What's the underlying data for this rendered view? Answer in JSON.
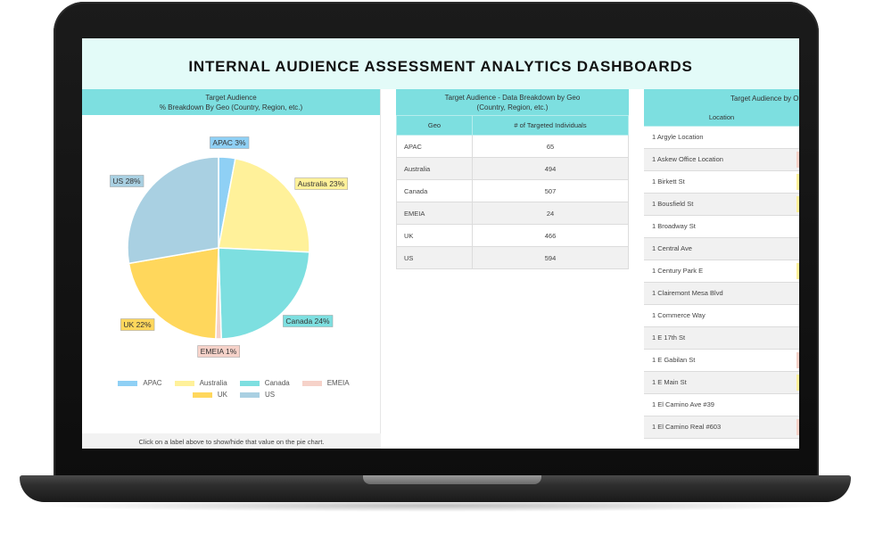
{
  "dashboard": {
    "title": "INTERNAL AUDIENCE ASSESSMENT ANALYTICS DASHBOARDS"
  },
  "pie_panel": {
    "header_line1": "Target Audience",
    "header_line2": "% Breakdown By Geo (Country, Region, etc.)",
    "footer": "Click on a label above to show/hide that value on the pie chart."
  },
  "chart_data": {
    "type": "pie",
    "slices": [
      {
        "name": "APAC",
        "label": "APAC 3%",
        "value": 3,
        "color": "#8fd0f5"
      },
      {
        "name": "Australia",
        "label": "Australia 23%",
        "value": 23,
        "color": "#fff19a"
      },
      {
        "name": "Canada",
        "label": "Canada 24%",
        "value": 24,
        "color": "#7ddfe0"
      },
      {
        "name": "EMEIA",
        "label": "EMEIA 1%",
        "value": 1,
        "color": "#f6d2c9"
      },
      {
        "name": "UK",
        "label": "UK 22%",
        "value": 22,
        "color": "#ffd75c"
      },
      {
        "name": "US",
        "label": "US 28%",
        "value": 28,
        "color": "#a9d0e2"
      }
    ],
    "legend": [
      "APAC",
      "Australia",
      "Canada",
      "EMEIA",
      "UK",
      "US"
    ],
    "legend_position": "bottom"
  },
  "geo_table": {
    "header_line1": "Target Audience - Data Breakdown by Geo",
    "header_line2": "(Country, Region, etc.)",
    "columns": [
      "Geo",
      "# of Targeted Individuals"
    ],
    "rows": [
      [
        "APAC",
        "65"
      ],
      [
        "Australia",
        "494"
      ],
      [
        "Canada",
        "507"
      ],
      [
        "EMEIA",
        "24"
      ],
      [
        "UK",
        "466"
      ],
      [
        "US",
        "594"
      ]
    ]
  },
  "location_panel": {
    "header": "Target Audience by O",
    "column": "Location",
    "rows": [
      "1 Argyle Location",
      "1 Askew Office Location",
      "1 Birkett St",
      "1 Bousfield St",
      "1 Broadway St",
      "1 Central Ave",
      "1 Century Park E",
      "1 Clairemont Mesa Blvd",
      "1 Commerce Way",
      "1 E 17th St",
      "1 E Gabilan St",
      "1 E Main St",
      "1 El Camino Ave #39",
      "1 El Camino Real #603"
    ],
    "edge_colors": [
      "",
      "#f6d2c9",
      "#fff19a",
      "#fff19a",
      "",
      "",
      "#fff19a",
      "",
      "",
      "",
      "#f6d2c9",
      "#fff19a",
      "",
      "#f6d2c9"
    ]
  }
}
